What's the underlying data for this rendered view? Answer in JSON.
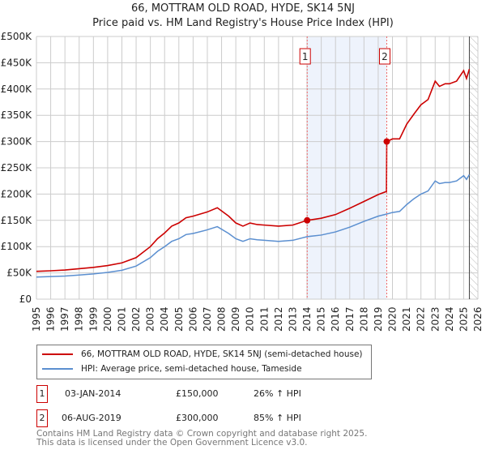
{
  "chart_data": {
    "type": "line",
    "title": "66, MOTTRAM OLD ROAD, HYDE, SK14 5NJ",
    "subtitle": "Price paid vs. HM Land Registry's House Price Index (HPI)",
    "xlim": [
      1995,
      2026
    ],
    "ylim": [
      0,
      500000
    ],
    "yticks": [
      {
        "v": 0,
        "label": "£0"
      },
      {
        "v": 50000,
        "label": "£50K"
      },
      {
        "v": 100000,
        "label": "£100K"
      },
      {
        "v": 150000,
        "label": "£150K"
      },
      {
        "v": 200000,
        "label": "£200K"
      },
      {
        "v": 250000,
        "label": "£250K"
      },
      {
        "v": 300000,
        "label": "£300K"
      },
      {
        "v": 350000,
        "label": "£350K"
      },
      {
        "v": 400000,
        "label": "£400K"
      },
      {
        "v": 450000,
        "label": "£450K"
      },
      {
        "v": 500000,
        "label": "£500K"
      }
    ],
    "xticks": [
      "1995",
      "1996",
      "1997",
      "1998",
      "1999",
      "2000",
      "2001",
      "2002",
      "2003",
      "2004",
      "2005",
      "2006",
      "2007",
      "2008",
      "2009",
      "2010",
      "2011",
      "2012",
      "2013",
      "2014",
      "2015",
      "2016",
      "2017",
      "2018",
      "2019",
      "2020",
      "2021",
      "2022",
      "2023",
      "2024",
      "2025",
      "2026"
    ],
    "grid": true,
    "shaded_range": [
      2014.01,
      2019.6
    ],
    "forecast_hatch_from": 2025.4,
    "series": [
      {
        "name": "66, MOTTRAM OLD ROAD, HYDE, SK14 5NJ (semi-detached house)",
        "color": "#cc0000",
        "x": [
          1995,
          1996,
          1997,
          1998,
          1999,
          2000,
          2001,
          2002,
          2003,
          2003.5,
          2004,
          2004.5,
          2005,
          2005.5,
          2006,
          2007,
          2007.7,
          2008.5,
          2009,
          2009.5,
          2010,
          2010.5,
          2011,
          2012,
          2013,
          2014.01,
          2015,
          2016,
          2017,
          2018,
          2019,
          2019.58,
          2019.6,
          2020,
          2020.5,
          2021,
          2021.5,
          2022,
          2022.5,
          2023,
          2023.3,
          2023.7,
          2024,
          2024.5,
          2025,
          2025.2,
          2025.4
        ],
        "y": [
          53000,
          54000,
          55500,
          58000,
          60500,
          64000,
          69000,
          79000,
          100000,
          115000,
          126000,
          139000,
          145000,
          155000,
          158000,
          166000,
          174000,
          158000,
          145000,
          139000,
          145000,
          142000,
          141000,
          139000,
          141000,
          150000,
          154000,
          161000,
          173000,
          186000,
          199000,
          205000,
          300000,
          305000,
          305000,
          333000,
          352000,
          370000,
          380000,
          415000,
          405000,
          410000,
          410000,
          415000,
          435000,
          420000,
          438000
        ]
      },
      {
        "name": "HPI: Average price, semi-detached house, Tameside",
        "color": "#5b8fd0",
        "x": [
          1995,
          1996,
          1997,
          1998,
          1999,
          2000,
          2001,
          2002,
          2003,
          2003.5,
          2004,
          2004.5,
          2005,
          2005.5,
          2006,
          2007,
          2007.7,
          2008.5,
          2009,
          2009.5,
          2010,
          2010.5,
          2011,
          2012,
          2013,
          2014.01,
          2015,
          2016,
          2017,
          2018,
          2019,
          2019.6,
          2020,
          2020.5,
          2021,
          2021.5,
          2022,
          2022.5,
          2023,
          2023.3,
          2023.7,
          2024,
          2024.5,
          2025,
          2025.2,
          2025.4
        ],
        "y": [
          42000,
          43000,
          44000,
          46000,
          48000,
          51000,
          55000,
          63000,
          79000,
          91000,
          100000,
          110000,
          115000,
          123000,
          125000,
          132000,
          138000,
          125000,
          115000,
          110000,
          115000,
          113000,
          112000,
          110000,
          112000,
          119000,
          122000,
          128000,
          137000,
          148000,
          158000,
          162000,
          165000,
          167000,
          180000,
          191000,
          200000,
          206000,
          225000,
          220000,
          222000,
          222000,
          225000,
          235000,
          228000,
          237000
        ]
      }
    ],
    "sales": [
      {
        "label": "1",
        "x": 2014.01,
        "price": 150000,
        "date": "03-JAN-2014",
        "price_text": "£150,000",
        "hpi_text": "26% ↑ HPI"
      },
      {
        "label": "2",
        "x": 2019.6,
        "price": 300000,
        "date": "06-AUG-2019",
        "price_text": "£300,000",
        "hpi_text": "85% ↑ HPI"
      }
    ]
  },
  "footer": {
    "line1": "Contains HM Land Registry data © Crown copyright and database right 2025.",
    "line2": "This data is licensed under the Open Government Licence v3.0."
  }
}
